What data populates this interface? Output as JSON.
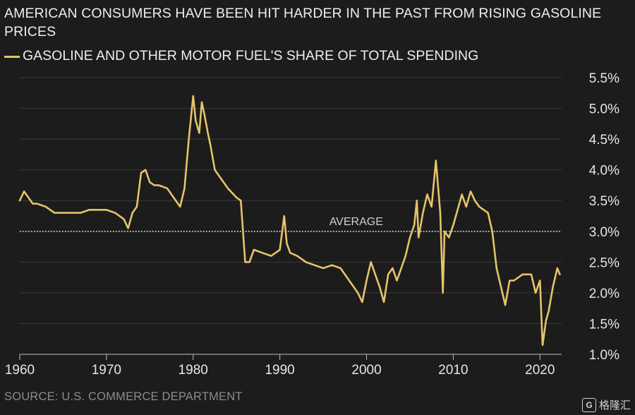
{
  "title": "AMERICAN CONSUMERS HAVE BEEN HIT HARDER IN THE PAST FROM RISING GASOLINE PRICES",
  "source": "SOURCE: U.S. COMMERCE DEPARTMENT",
  "brand": {
    "mark": "G",
    "text": "格隆汇"
  },
  "colors": {
    "series": "#e6c36a",
    "background": "#1c1c1c",
    "grid": "#3a3a3a",
    "average_line": "#e6e6e6"
  },
  "chart_data": {
    "type": "line",
    "title": "AMERICAN CONSUMERS HAVE BEEN HIT HARDER IN THE PAST FROM RISING GASOLINE PRICES",
    "xlabel": "",
    "ylabel": "",
    "xlim": [
      1960,
      2022.5
    ],
    "ylim": [
      1.0,
      5.5
    ],
    "x_ticks": [
      1960,
      1970,
      1980,
      1990,
      2000,
      2010,
      2020
    ],
    "y_ticks": [
      1.0,
      1.5,
      2.0,
      2.5,
      3.0,
      3.5,
      4.0,
      4.5,
      5.0,
      5.5
    ],
    "y_tick_labels": [
      "1.0%",
      "1.5%",
      "2.0%",
      "2.5%",
      "3.0%",
      "3.5%",
      "4.0%",
      "4.5%",
      "5.0%",
      "5.5%"
    ],
    "grid": "horizontal",
    "legend_position": "top-left",
    "average": {
      "label": "AVERAGE",
      "value": 3.0
    },
    "series": [
      {
        "name": "GASOLINE AND OTHER MOTOR FUEL'S SHARE OF TOTAL SPENDING",
        "x": [
          1960,
          1960.5,
          1961,
          1961.5,
          1962,
          1963,
          1964,
          1965,
          1966,
          1967,
          1968,
          1969,
          1970,
          1971,
          1972,
          1972.5,
          1973,
          1973.5,
          1974,
          1974.5,
          1975,
          1975.5,
          1976,
          1977,
          1978,
          1978.5,
          1979,
          1979.5,
          1980,
          1980.3,
          1980.7,
          1981,
          1981.3,
          1981.7,
          1982,
          1982.5,
          1983,
          1984,
          1985,
          1985.5,
          1986,
          1986.5,
          1987,
          1988,
          1989,
          1990,
          1990.5,
          1990.8,
          1991.2,
          1992,
          1993,
          1994,
          1995,
          1996,
          1997,
          1998,
          1999,
          1999.5,
          2000,
          2000.5,
          2001,
          2001.5,
          2002,
          2002.5,
          2003,
          2003.5,
          2004,
          2004.5,
          2005,
          2005.5,
          2005.8,
          2006,
          2006.5,
          2007,
          2007.5,
          2008,
          2008.5,
          2008.8,
          2009,
          2009.5,
          2010,
          2011,
          2011.5,
          2012,
          2012.5,
          2013,
          2014,
          2014.5,
          2015,
          2015.5,
          2016,
          2016.5,
          2017,
          2018,
          2019,
          2019.5,
          2020,
          2020.3,
          2020.7,
          2021,
          2021.5,
          2022,
          2022.3
        ],
        "values": [
          3.5,
          3.65,
          3.55,
          3.45,
          3.45,
          3.4,
          3.3,
          3.3,
          3.3,
          3.3,
          3.35,
          3.35,
          3.35,
          3.3,
          3.2,
          3.05,
          3.3,
          3.4,
          3.95,
          4.0,
          3.8,
          3.75,
          3.75,
          3.7,
          3.5,
          3.4,
          3.7,
          4.5,
          5.2,
          4.8,
          4.6,
          5.1,
          4.9,
          4.6,
          4.4,
          4.0,
          3.9,
          3.7,
          3.55,
          3.5,
          2.5,
          2.5,
          2.7,
          2.65,
          2.6,
          2.7,
          3.25,
          2.8,
          2.65,
          2.6,
          2.5,
          2.45,
          2.4,
          2.45,
          2.4,
          2.2,
          2.0,
          1.85,
          2.2,
          2.5,
          2.3,
          2.1,
          1.85,
          2.3,
          2.4,
          2.2,
          2.4,
          2.6,
          2.9,
          3.1,
          3.5,
          2.9,
          3.3,
          3.6,
          3.4,
          4.15,
          3.3,
          2.0,
          3.0,
          2.9,
          3.1,
          3.6,
          3.4,
          3.65,
          3.5,
          3.4,
          3.3,
          3.0,
          2.4,
          2.1,
          1.8,
          2.2,
          2.2,
          2.3,
          2.3,
          2.0,
          2.2,
          1.15,
          1.55,
          1.7,
          2.1,
          2.4,
          2.3
        ]
      }
    ]
  }
}
